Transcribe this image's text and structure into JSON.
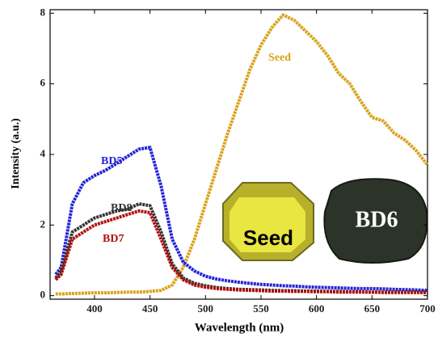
{
  "chart_data": {
    "type": "line",
    "x_label": "Wavelength (nm)",
    "y_label": "Intensity (a.u.)",
    "xlim": [
      360,
      700
    ],
    "ylim": [
      -0.1,
      8.1
    ],
    "xticks": [
      400,
      450,
      500,
      550,
      600,
      650,
      700
    ],
    "yticks": [
      0,
      2,
      4,
      6,
      8
    ],
    "x": [
      365,
      370,
      380,
      390,
      400,
      410,
      420,
      430,
      440,
      450,
      460,
      470,
      480,
      490,
      500,
      510,
      520,
      530,
      540,
      550,
      560,
      570,
      580,
      590,
      600,
      610,
      620,
      630,
      640,
      650,
      660,
      670,
      680,
      690,
      700
    ],
    "series": [
      {
        "name": "Seed",
        "color": "#d9a21a",
        "values": [
          0.05,
          0.05,
          0.06,
          0.07,
          0.08,
          0.08,
          0.09,
          0.1,
          0.1,
          0.12,
          0.15,
          0.3,
          0.8,
          1.6,
          2.6,
          3.6,
          4.6,
          5.5,
          6.4,
          7.1,
          7.6,
          7.95,
          7.8,
          7.5,
          7.2,
          6.8,
          6.3,
          6.0,
          5.5,
          5.05,
          4.95,
          4.6,
          4.4,
          4.1,
          3.7
        ]
      },
      {
        "name": "BD5",
        "color": "#2323d8",
        "values": [
          0.6,
          0.8,
          2.6,
          3.2,
          3.4,
          3.55,
          3.75,
          3.95,
          4.15,
          4.2,
          3.1,
          1.6,
          0.95,
          0.7,
          0.55,
          0.47,
          0.42,
          0.38,
          0.35,
          0.32,
          0.3,
          0.28,
          0.27,
          0.25,
          0.24,
          0.23,
          0.22,
          0.21,
          0.2,
          0.2,
          0.19,
          0.18,
          0.17,
          0.16,
          0.15
        ]
      },
      {
        "name": "BD8",
        "color": "#333333",
        "values": [
          0.5,
          0.7,
          1.8,
          2.0,
          2.2,
          2.3,
          2.4,
          2.45,
          2.6,
          2.55,
          1.8,
          0.9,
          0.5,
          0.35,
          0.28,
          0.23,
          0.2,
          0.18,
          0.17,
          0.16,
          0.15,
          0.14,
          0.14,
          0.13,
          0.13,
          0.12,
          0.12,
          0.11,
          0.11,
          0.1,
          0.1,
          0.1,
          0.1,
          0.1,
          0.1
        ]
      },
      {
        "name": "BD7",
        "color": "#b01010",
        "values": [
          0.45,
          0.6,
          1.6,
          1.8,
          2.0,
          2.1,
          2.2,
          2.3,
          2.4,
          2.35,
          1.6,
          0.8,
          0.45,
          0.3,
          0.24,
          0.2,
          0.18,
          0.16,
          0.15,
          0.14,
          0.13,
          0.13,
          0.12,
          0.12,
          0.11,
          0.11,
          0.1,
          0.1,
          0.1,
          0.1,
          0.09,
          0.09,
          0.09,
          0.09,
          0.08
        ]
      }
    ],
    "image_labels": [
      "Seed",
      "BD6"
    ]
  }
}
